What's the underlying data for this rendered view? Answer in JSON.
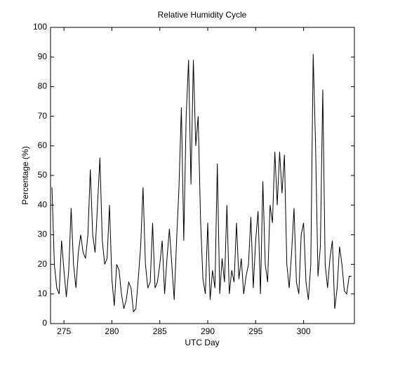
{
  "chart_data": {
    "type": "line",
    "title": "Relative Humidity Cycle",
    "x_label": "UTC Day",
    "y_label": "Percentage (%)",
    "x": [
      273.75,
      274,
      274.25,
      274.5,
      274.75,
      275,
      275.25,
      275.5,
      275.75,
      276,
      276.25,
      276.5,
      276.75,
      277,
      277.25,
      277.5,
      277.75,
      278,
      278.25,
      278.5,
      278.75,
      279,
      279.25,
      279.5,
      279.75,
      280,
      280.25,
      280.5,
      280.75,
      281,
      281.25,
      281.5,
      281.75,
      282,
      282.25,
      282.5,
      282.75,
      283,
      283.25,
      283.5,
      283.75,
      284,
      284.25,
      284.5,
      284.75,
      285,
      285.25,
      285.5,
      285.75,
      286,
      286.25,
      286.5,
      286.75,
      287,
      287.25,
      287.5,
      287.75,
      288,
      288.25,
      288.5,
      288.75,
      289,
      289.25,
      289.5,
      289.75,
      290,
      290.25,
      290.5,
      290.75,
      291,
      291.25,
      291.5,
      291.75,
      292,
      292.25,
      292.5,
      292.75,
      293,
      293.25,
      293.5,
      293.75,
      294,
      294.25,
      294.5,
      294.75,
      295,
      295.25,
      295.5,
      295.75,
      296,
      296.25,
      296.5,
      296.75,
      297,
      297.25,
      297.5,
      297.75,
      298,
      298.25,
      298.5,
      298.75,
      299,
      299.25,
      299.5,
      299.75,
      300,
      300.25,
      300.5,
      300.75,
      301,
      301.25,
      301.5,
      301.75,
      302,
      302.25,
      302.5,
      302.75,
      303,
      303.25,
      303.5,
      303.75,
      304,
      304.25,
      304.5,
      304.75,
      305
    ],
    "series": [
      {
        "name": "Relative Humidity",
        "color": "#000000",
        "values": [
          46,
          20,
          12,
          10,
          28,
          18,
          9,
          18,
          39,
          20,
          12,
          24,
          30,
          24,
          22,
          30,
          52,
          30,
          24,
          40,
          56,
          28,
          20,
          22,
          40,
          15,
          6,
          20,
          18,
          10,
          5,
          8,
          14,
          12,
          4,
          5,
          15,
          26,
          46,
          20,
          12,
          14,
          34,
          12,
          14,
          20,
          28,
          10,
          22,
          32,
          20,
          8,
          28,
          46,
          73,
          28,
          70,
          89,
          47,
          89,
          60,
          70,
          35,
          15,
          10,
          34,
          8,
          18,
          12,
          54,
          10,
          22,
          14,
          40,
          10,
          18,
          14,
          34,
          15,
          22,
          10,
          16,
          20,
          36,
          12,
          28,
          38,
          10,
          48,
          20,
          14,
          40,
          34,
          58,
          40,
          58,
          44,
          57,
          20,
          12,
          24,
          39,
          14,
          10,
          30,
          34,
          14,
          8,
          20,
          91,
          60,
          16,
          26,
          79,
          20,
          12,
          22,
          28,
          5,
          12,
          26,
          20,
          11,
          10,
          16,
          16
        ]
      }
    ],
    "xlim": [
      273.6,
      305.3
    ],
    "ylim": [
      0,
      100
    ],
    "xticks": [
      275,
      280,
      285,
      290,
      295,
      300
    ],
    "yticks": [
      0,
      10,
      20,
      30,
      40,
      50,
      60,
      70,
      80,
      90,
      100
    ]
  }
}
